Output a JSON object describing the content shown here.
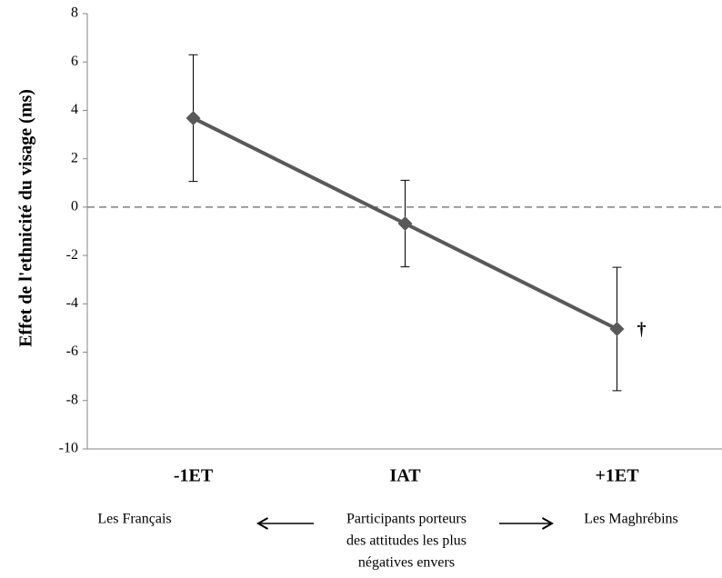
{
  "chart_data": {
    "type": "line",
    "y_label": "Effet de l'ethnicité du visage (ms)",
    "categories": [
      "-1ET",
      "IAT",
      "+1ET"
    ],
    "values": [
      3.68,
      -0.68,
      -5.04
    ],
    "errors": [
      2.62,
      1.79,
      2.55
    ],
    "color": "#595959",
    "ylim": [
      -10,
      8
    ],
    "yticks": [
      -10,
      -8,
      -6,
      -4,
      -2,
      0,
      2,
      4,
      6,
      8
    ],
    "reference_line": 0,
    "annotations": {
      "marker": "†",
      "left": "Les Français",
      "center": [
        "Participants porteurs",
        "des attitudes les plus",
        "négatives envers"
      ],
      "right": "Les Maghrébins"
    }
  }
}
